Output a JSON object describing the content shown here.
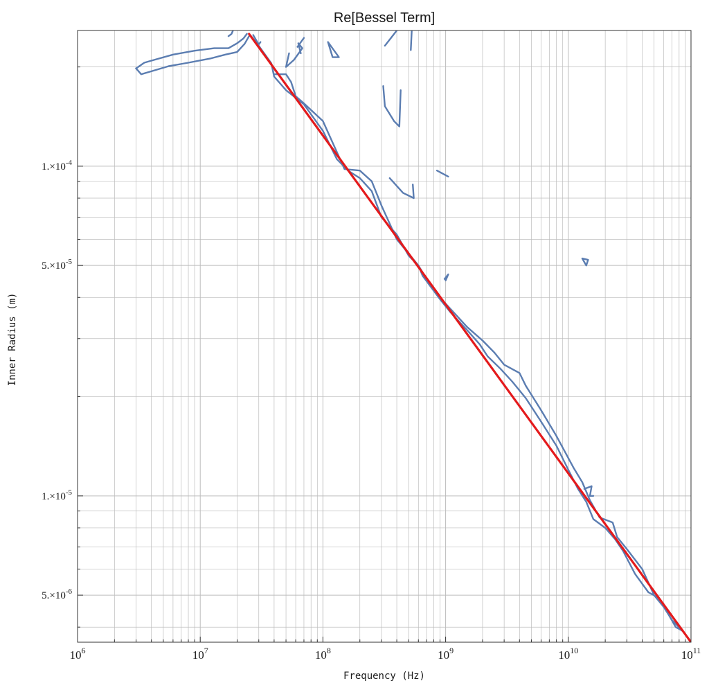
{
  "chart_data": {
    "type": "line",
    "title": "Re[Bessel Term]",
    "xlabel": "Frequency (Hz)",
    "ylabel": "Inner Radius (m)",
    "xscale": "log",
    "yscale": "log",
    "xlim": [
      1000000,
      100000000000
    ],
    "ylim": [
      3.6e-06,
      0.000258
    ],
    "grid": true,
    "colors": {
      "contour": "#5b7db1",
      "fit": "#e41a1c",
      "grid": "#bcbcbc",
      "frame": "#333333"
    },
    "x_tick_labels": [
      {
        "value": 1000000,
        "base": "10",
        "exp": "6"
      },
      {
        "value": 10000000,
        "base": "10",
        "exp": "7"
      },
      {
        "value": 100000000,
        "base": "10",
        "exp": "8"
      },
      {
        "value": 1000000000,
        "base": "10",
        "exp": "9"
      },
      {
        "value": 10000000000,
        "base": "10",
        "exp": "10"
      },
      {
        "value": 100000000000,
        "base": "10",
        "exp": "11"
      }
    ],
    "y_tick_labels": [
      {
        "value": 0.0001,
        "mant": "1.×10",
        "exp": "-4"
      },
      {
        "value": 5e-05,
        "mant": "5.×10",
        "exp": "-5"
      },
      {
        "value": 1e-05,
        "mant": "1.×10",
        "exp": "-5"
      },
      {
        "value": 5e-06,
        "mant": "5.×10",
        "exp": "-6"
      }
    ],
    "series": [
      {
        "type": "line",
        "style": "fit",
        "x": [
          25000000,
          100000000000
        ],
        "y": [
          0.000252,
          3.6e-06
        ]
      },
      {
        "type": "contour",
        "style": "contour",
        "paths": [
          [
            [
              3000000.0,
              0.000198
            ],
            [
              3300000.0,
              0.00019
            ],
            [
              4000000.0,
              0.000194
            ],
            [
              5500000.0,
              0.000201
            ],
            [
              8000000.0,
              0.000206
            ],
            [
              12000000.0,
              0.000212
            ],
            [
              16000000.0,
              0.000218
            ],
            [
              20000000.0,
              0.000222
            ],
            [
              23000000.0,
              0.000235
            ],
            [
              25000000.0,
              0.000248
            ]
          ],
          [
            [
              3000000.0,
              0.000198
            ],
            [
              3500000.0,
              0.000206
            ],
            [
              4200000.0,
              0.00021
            ],
            [
              6000000.0,
              0.000218
            ],
            [
              9000000.0,
              0.000224
            ],
            [
              13000000.0,
              0.000228
            ],
            [
              17000000.0,
              0.000228
            ],
            [
              20000000.0,
              0.000236
            ],
            [
              22500000.0,
              0.000244
            ],
            [
              24000000.0,
              0.000252
            ]
          ],
          [
            [
              17000000.0,
              0.000248
            ],
            [
              18000000.0,
              0.000252
            ],
            [
              18500000.0,
              0.000258
            ]
          ],
          [
            [
              26000000.0,
              0.000248
            ],
            [
              30000000.0,
              0.000232
            ],
            [
              38000000.0,
              0.000205
            ],
            [
              40000000.0,
              0.000187
            ],
            [
              50000000.0,
              0.00017
            ],
            [
              70000000.0,
              0.000154
            ],
            [
              100000000.0,
              0.000128
            ],
            [
              130000000.0,
              0.000105
            ],
            [
              160000000.0,
              9.7e-05
            ],
            [
              200000000.0,
              9.2e-05
            ],
            [
              250000000.0,
              8.4e-05
            ],
            [
              300000000.0,
              7e-05
            ],
            [
              400000000.0,
              6.2e-05
            ],
            [
              500000000.0,
              5.35e-05
            ],
            [
              600000000.0,
              5e-05
            ],
            [
              650000000.0,
              4.65e-05
            ],
            [
              900000000.0,
              3.95e-05
            ],
            [
              1100000000.0,
              3.6e-05
            ],
            [
              1500000000.0,
              3.18e-05
            ],
            [
              1900000000.0,
              2.88e-05
            ],
            [
              2200000000.0,
              2.65e-05
            ],
            [
              2800000000.0,
              2.43e-05
            ],
            [
              3500000000.0,
              2.22e-05
            ],
            [
              4500000000.0,
              1.98e-05
            ],
            [
              6000000000.0,
              1.68e-05
            ],
            [
              8000000000.0,
              1.42e-05
            ],
            [
              10000000000.0,
              1.2e-05
            ],
            [
              12000000000.0,
              1.05e-05
            ],
            [
              14000000000.0,
              9.6e-06
            ],
            [
              16000000000.0,
              8.5e-06
            ],
            [
              20000000000.0,
              8e-06
            ],
            [
              24000000000.0,
              7.4e-06
            ],
            [
              28000000000.0,
              6.8e-06
            ],
            [
              35000000000.0,
              5.8e-06
            ],
            [
              45000000000.0,
              5.1e-06
            ],
            [
              55000000000.0,
              4.9e-06
            ],
            [
              65000000000.0,
              4.4e-06
            ],
            [
              75000000000.0,
              4e-06
            ],
            [
              85000000000.0,
              3.9e-06
            ]
          ],
          [
            [
              40000000.0,
              0.00019
            ],
            [
              50000000.0,
              0.00019
            ],
            [
              55000000.0,
              0.00018
            ],
            [
              60000000.0,
              0.000163
            ],
            [
              70000000.0,
              0.000155
            ],
            [
              100000000.0,
              0.000137
            ],
            [
              150000000.0,
              9.8e-05
            ],
            [
              200000000.0,
              9.7e-05
            ],
            [
              250000000.0,
              9e-05
            ],
            [
              300000000.0,
              7.6e-05
            ],
            [
              400000000.0,
              6e-05
            ],
            [
              600000000.0,
              5e-05
            ],
            [
              800000000.0,
              4.2e-05
            ],
            [
              1000000000.0,
              3.83e-05
            ],
            [
              1500000000.0,
              3.25e-05
            ],
            [
              2000000000.0,
              2.96e-05
            ],
            [
              2500000000.0,
              2.72e-05
            ],
            [
              3000000000.0,
              2.5e-05
            ],
            [
              4000000000.0,
              2.36e-05
            ],
            [
              4500000000.0,
              2.16e-05
            ],
            [
              6000000000.0,
              1.82e-05
            ],
            [
              8000000000.0,
              1.52e-05
            ],
            [
              11000000000.0,
              1.22e-05
            ],
            [
              13000000000.0,
              1.1e-05
            ],
            [
              15000000000.0,
              9.7e-06
            ],
            [
              18000000000.0,
              8.6e-06
            ],
            [
              23000000000.0,
              8.3e-06
            ],
            [
              25000000000.0,
              7.5e-06
            ],
            [
              30000000000.0,
              6.9e-06
            ],
            [
              40000000000.0,
              6e-06
            ],
            [
              50000000000.0,
              5e-06
            ],
            [
              60000000000.0,
              4.6e-06
            ],
            [
              70000000000.0,
              4.2e-06
            ],
            [
              85000000000.0,
              3.9e-06
            ]
          ],
          [
            [
              27000000.0,
              0.00025
            ],
            [
              30000000.0,
              0.000234
            ],
            [
              31000000.0,
              0.000238
            ]
          ],
          [
            [
              53000000.0,
              0.00022
            ],
            [
              50000000.0,
              0.0002
            ],
            [
              58000000.0,
              0.00021
            ],
            [
              68000000.0,
              0.000228
            ],
            [
              63000000.0,
              0.000236
            ],
            [
              66000000.0,
              0.00022
            ]
          ],
          [
            [
              62000000.0,
              0.00023
            ],
            [
              70000000.0,
              0.000245
            ]
          ],
          [
            [
              110000000.0,
              0.000238
            ],
            [
              120000000.0,
              0.000214
            ],
            [
              135000000.0,
              0.000214
            ],
            [
              110000000.0,
              0.000238
            ]
          ],
          [
            [
              320000000.0,
              0.000232
            ],
            [
              400000000.0,
              0.000258
            ]
          ],
          [
            [
              310000000.0,
              0.000175
            ],
            [
              320000000.0,
              0.000152
            ],
            [
              380000000.0,
              0.000137
            ],
            [
              420000000.0,
              0.000132
            ],
            [
              430000000.0,
              0.00017
            ]
          ],
          [
            [
              530000000.0,
              0.000258
            ],
            [
              520000000.0,
              0.000225
            ]
          ],
          [
            [
              350000000.0,
              9.2e-05
            ],
            [
              450000000.0,
              8.3e-05
            ],
            [
              550000000.0,
              8e-05
            ],
            [
              540000000.0,
              8.8e-05
            ]
          ],
          [
            [
              850000000.0,
              9.7e-05
            ],
            [
              1050000000.0,
              9.3e-05
            ]
          ],
          [
            [
              980000000.0,
              4.55e-05
            ],
            [
              1050000000.0,
              4.7e-05
            ],
            [
              1000000000.0,
              4.5e-05
            ]
          ],
          [
            [
              13000000000.0,
              5.25e-05
            ],
            [
              14500000000.0,
              5.2e-05
            ],
            [
              14000000000.0,
              5e-05
            ],
            [
              13000000000.0,
              5.25e-05
            ]
          ],
          [
            [
              13500000000.0,
              1.05e-05
            ],
            [
              15500000000.0,
              1.07e-05
            ],
            [
              15000000000.0,
              1e-05
            ],
            [
              16000000000.0,
              1e-05
            ]
          ]
        ]
      }
    ]
  }
}
